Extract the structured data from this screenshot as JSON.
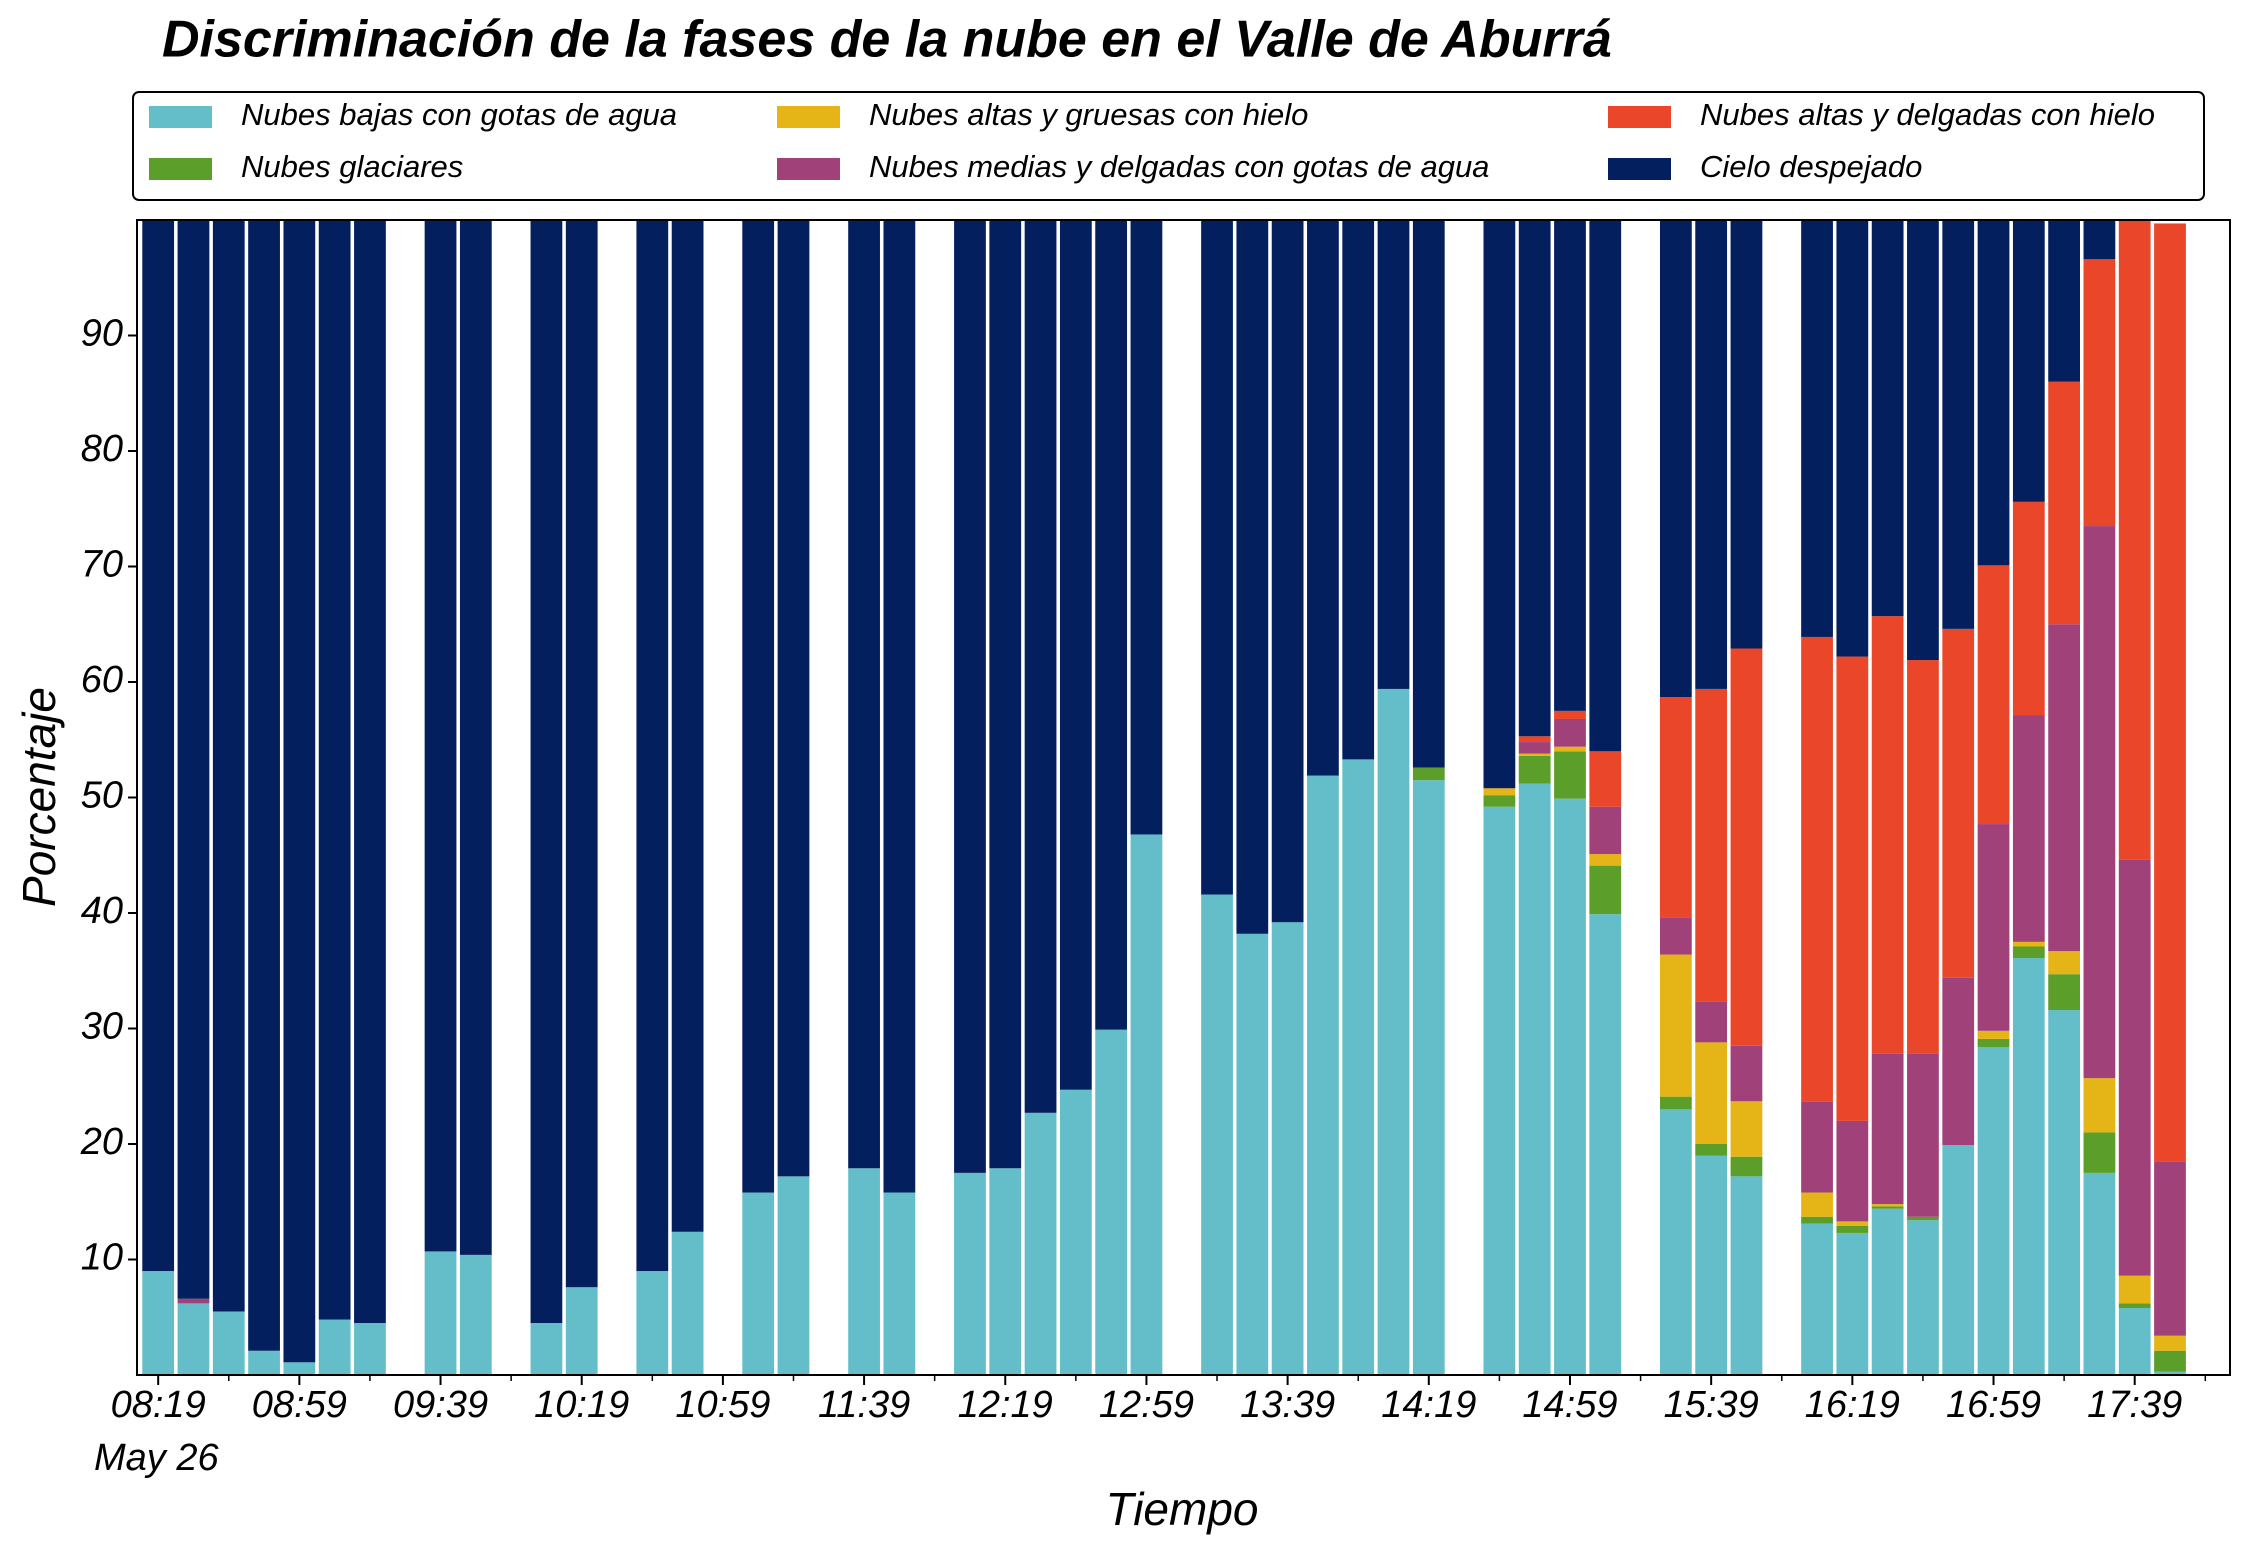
{
  "chart_data": {
    "type": "stacked_bar",
    "title": "Discriminación de la fases de la nube en el Valle de Aburrá",
    "xlabel": "Tiempo",
    "ylabel": "Porcentaje",
    "x_date_label": "May 26",
    "x": [
      "08:19",
      "08:29",
      "08:39",
      "08:49",
      "08:59",
      "09:09",
      "09:19",
      "09:39",
      "09:49",
      "10:09",
      "10:19",
      "10:39",
      "10:49",
      "11:09",
      "11:19",
      "11:39",
      "11:49",
      "12:09",
      "12:19",
      "12:29",
      "12:39",
      "12:49",
      "12:59",
      "13:19",
      "13:29",
      "13:39",
      "13:49",
      "13:59",
      "14:09",
      "14:19",
      "14:39",
      "14:49",
      "14:59",
      "15:09",
      "15:29",
      "15:39",
      "15:49",
      "16:09",
      "16:19",
      "16:29",
      "16:39",
      "16:49",
      "16:59",
      "17:09",
      "17:19",
      "17:29",
      "17:39",
      "17:49"
    ],
    "series": [
      {
        "name": "Nubes bajas con gotas de agua",
        "color": "#64bec9",
        "values": [
          9.0,
          6.2,
          5.5,
          2.1,
          1.1,
          4.8,
          4.5,
          10.7,
          10.4,
          4.5,
          7.6,
          9.0,
          12.4,
          15.8,
          17.2,
          17.9,
          15.8,
          17.5,
          17.9,
          22.7,
          24.7,
          29.9,
          46.8,
          41.6,
          38.2,
          39.2,
          51.9,
          53.3,
          59.4,
          51.5,
          49.2,
          51.2,
          49.9,
          39.9,
          23.0,
          19.0,
          17.2,
          13.1,
          12.3,
          14.4,
          13.4,
          19.9,
          28.4,
          36.1,
          31.6,
          17.5,
          5.8,
          0.3
        ]
      },
      {
        "name": "Nubes glaciares",
        "color": "#5b9e2a",
        "values": [
          0,
          0,
          0,
          0,
          0,
          0,
          0,
          0,
          0,
          0,
          0,
          0,
          0,
          0,
          0,
          0,
          0,
          0,
          0,
          0,
          0,
          0,
          0,
          0,
          0,
          0,
          0,
          0,
          0,
          1.1,
          1.0,
          2.4,
          4.1,
          4.2,
          1.1,
          1.0,
          1.7,
          0.6,
          0.6,
          0.2,
          0.3,
          0,
          0.7,
          1.0,
          3.1,
          3.5,
          0.4,
          1.8
        ]
      },
      {
        "name": "Nubes altas y gruesas con hielo",
        "color": "#e5b416",
        "values": [
          0,
          0,
          0,
          0,
          0,
          0,
          0,
          0,
          0,
          0,
          0,
          0,
          0,
          0,
          0,
          0,
          0,
          0,
          0,
          0,
          0,
          0,
          0,
          0,
          0,
          0,
          0,
          0,
          0,
          0,
          0.6,
          0.2,
          0.4,
          1.0,
          12.3,
          8.8,
          4.8,
          2.1,
          0.4,
          0.2,
          0,
          0,
          0.7,
          0.4,
          2.0,
          4.7,
          2.4,
          1.3
        ]
      },
      {
        "name": "Nubes medias y delgadas con gotas de agua",
        "color": "#a0417a",
        "values": [
          0,
          0.4,
          0,
          0,
          0,
          0,
          0,
          0,
          0,
          0,
          0,
          0,
          0,
          0,
          0,
          0,
          0,
          0,
          0,
          0,
          0,
          0,
          0,
          0,
          0,
          0,
          0,
          0,
          0,
          0,
          0,
          1.0,
          2.4,
          4.1,
          3.2,
          3.5,
          4.8,
          7.9,
          8.7,
          13.0,
          14.1,
          14.5,
          17.9,
          19.6,
          28.3,
          47.8,
          36.0,
          15.1
        ]
      },
      {
        "name": "Nubes altas y delgadas con hielo",
        "color": "#ea462a",
        "values": [
          0,
          0,
          0,
          0,
          0,
          0,
          0,
          0,
          0,
          0,
          0,
          0,
          0,
          0,
          0,
          0,
          0,
          0,
          0,
          0,
          0,
          0,
          0,
          0,
          0,
          0,
          0,
          0,
          0,
          0,
          0,
          0.5,
          0.7,
          4.8,
          19.1,
          27.1,
          34.4,
          40.2,
          40.2,
          37.9,
          34.1,
          30.2,
          22.4,
          18.5,
          21.0,
          23.1,
          55.4,
          81.2
        ]
      },
      {
        "name": "Cielo despejado",
        "color": "#031f5e",
        "values": [
          91.0,
          93.4,
          94.5,
          97.9,
          98.9,
          95.2,
          95.5,
          89.3,
          89.6,
          95.5,
          92.4,
          91.0,
          87.6,
          84.2,
          82.8,
          82.1,
          84.2,
          82.5,
          82.1,
          77.3,
          75.3,
          70.1,
          53.2,
          58.4,
          61.8,
          60.8,
          48.1,
          46.7,
          40.6,
          47.4,
          49.2,
          44.7,
          42.5,
          46.0,
          41.3,
          40.6,
          37.1,
          36.1,
          37.8,
          34.3,
          38.1,
          35.4,
          29.9,
          24.4,
          14.0,
          3.4,
          0,
          0
        ]
      }
    ],
    "xlim": [
      "08:13",
      "18:06"
    ],
    "xticks": [
      "08:19",
      "08:59",
      "09:39",
      "10:19",
      "10:59",
      "11:39",
      "12:19",
      "12:59",
      "13:39",
      "14:19",
      "14:59",
      "15:39",
      "16:19",
      "16:59",
      "17:39"
    ],
    "xticks_minor": [
      "08:39",
      "09:19",
      "09:59",
      "10:39",
      "11:19",
      "11:59",
      "12:39",
      "13:19",
      "13:59",
      "14:39",
      "15:19",
      "15:59",
      "16:39",
      "17:19",
      "17:59"
    ],
    "ylim": [
      0,
      100
    ],
    "yticks": [
      10,
      20,
      30,
      40,
      50,
      60,
      70,
      80,
      90
    ],
    "grid": false,
    "legend": "top"
  }
}
